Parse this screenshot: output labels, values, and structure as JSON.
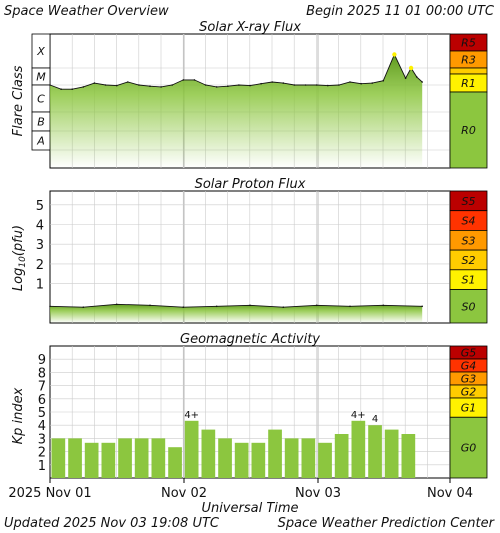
{
  "header": {
    "title": "Space Weather Overview",
    "begin": "Begin 2025 11 01 00:00 UTC"
  },
  "footer": {
    "updated": "Updated 2025 Nov 03 19:08 UTC",
    "center": "Space Weather Prediction Center"
  },
  "colors": {
    "green": "#8cc63f",
    "yellow": "#fff200",
    "gold": "#ffcc00",
    "orange": "#ff9900",
    "red_orange": "#ff3300",
    "red": "#cc0000",
    "dark_red": "#bb0000",
    "grid": "#cccccc"
  },
  "chart_data": [
    {
      "type": "area",
      "title": "Solar X-ray Flux",
      "ylabel": "Flare Class",
      "yclasses": [
        "X",
        "M",
        "C",
        "B",
        "A"
      ],
      "grid": true,
      "x": [
        "2025-11-01 00:00",
        "2025-11-01 02:00",
        "2025-11-01 04:00",
        "2025-11-01 06:00",
        "2025-11-01 08:00",
        "2025-11-01 10:00",
        "2025-11-01 12:00",
        "2025-11-01 14:00",
        "2025-11-01 16:00",
        "2025-11-01 18:00",
        "2025-11-01 20:00",
        "2025-11-01 22:00",
        "2025-11-02 00:00",
        "2025-11-02 02:00",
        "2025-11-02 04:00",
        "2025-11-02 06:00",
        "2025-11-02 08:00",
        "2025-11-02 10:00",
        "2025-11-02 12:00",
        "2025-11-02 14:00",
        "2025-11-02 16:00",
        "2025-11-02 18:00",
        "2025-11-02 20:00",
        "2025-11-02 22:00",
        "2025-11-03 00:00",
        "2025-11-03 02:00",
        "2025-11-03 04:00",
        "2025-11-03 06:00",
        "2025-11-03 08:00",
        "2025-11-03 10:00",
        "2025-11-03 12:00",
        "2025-11-03 14:00",
        "2025-11-03 16:00",
        "2025-11-03 17:00",
        "2025-11-03 18:00",
        "2025-11-03 19:00"
      ],
      "values": [
        "C1.0",
        "B7.0",
        "B7.0",
        "B8.5",
        "C1.3",
        "C1.0",
        "B9.5",
        "C1.5",
        "C1.0",
        "B9.0",
        "B8.5",
        "C1.0",
        "C2.0",
        "C2.0",
        "C1.0",
        "B8.5",
        "B9.0",
        "C1.0",
        "B9.5",
        "C1.2",
        "C1.5",
        "C1.3",
        "C1.0",
        "C1.0",
        "C1.0",
        "B9.5",
        "C1.0",
        "C1.5",
        "C1.2",
        "C1.3",
        "C1.8",
        "M2.5",
        "C2.5",
        "M1.0",
        "C3.0",
        "C1.5"
      ],
      "scale_labels": [
        "R5",
        "R3",
        "R1",
        "R0"
      ]
    },
    {
      "type": "area",
      "title": "Solar Proton Flux",
      "ylabel": "Log10(pfu)",
      "ylim": [
        -1,
        5.7
      ],
      "yticks": [
        1,
        2,
        3,
        4,
        5
      ],
      "grid": true,
      "x": [
        "2025-11-01 00:00",
        "2025-11-01 06:00",
        "2025-11-01 12:00",
        "2025-11-01 18:00",
        "2025-11-02 00:00",
        "2025-11-02 06:00",
        "2025-11-02 12:00",
        "2025-11-02 18:00",
        "2025-11-03 00:00",
        "2025-11-03 06:00",
        "2025-11-03 12:00",
        "2025-11-03 19:00"
      ],
      "values": [
        -0.15,
        -0.2,
        -0.05,
        -0.1,
        -0.2,
        -0.15,
        -0.1,
        -0.2,
        -0.1,
        -0.15,
        -0.1,
        -0.15
      ],
      "scale_labels": [
        "S5",
        "S4",
        "S3",
        "S2",
        "S1",
        "S0"
      ]
    },
    {
      "type": "bar",
      "title": "Geomagnetic Activity",
      "ylabel": "Kp index",
      "ylim": [
        0,
        10
      ],
      "yticks": [
        1,
        2,
        3,
        4,
        5,
        6,
        7,
        8,
        9
      ],
      "grid": true,
      "x": [
        "2025-11-01 00:00",
        "2025-11-01 03:00",
        "2025-11-01 06:00",
        "2025-11-01 09:00",
        "2025-11-01 12:00",
        "2025-11-01 15:00",
        "2025-11-01 18:00",
        "2025-11-01 21:00",
        "2025-11-02 00:00",
        "2025-11-02 03:00",
        "2025-11-02 06:00",
        "2025-11-02 09:00",
        "2025-11-02 12:00",
        "2025-11-02 15:00",
        "2025-11-02 18:00",
        "2025-11-02 21:00",
        "2025-11-03 00:00",
        "2025-11-03 03:00",
        "2025-11-03 06:00",
        "2025-11-03 09:00",
        "2025-11-03 12:00",
        "2025-11-03 15:00"
      ],
      "values": [
        3.0,
        3.0,
        2.67,
        2.67,
        3.0,
        3.0,
        3.0,
        2.33,
        4.33,
        3.67,
        3.0,
        2.67,
        2.67,
        3.67,
        3.0,
        3.0,
        2.67,
        3.33,
        4.33,
        4.0,
        3.67,
        3.33
      ],
      "bar_labels": [
        {
          "index": 8,
          "text": "4+"
        },
        {
          "index": 18,
          "text": "4+"
        },
        {
          "index": 19,
          "text": "4"
        }
      ],
      "scale_labels": [
        "G5",
        "G4",
        "G3",
        "G2",
        "G1",
        "G0"
      ]
    }
  ],
  "axis": {
    "xlabel": "Universal Time",
    "ticks": [
      "2025 Nov 01",
      "Nov 02",
      "Nov 03",
      "Nov 04"
    ]
  }
}
